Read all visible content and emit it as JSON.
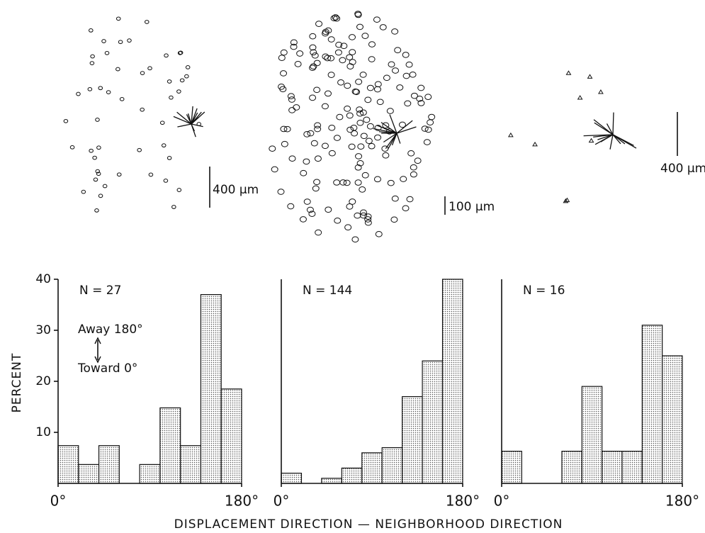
{
  "figure": {
    "xlabel": "DISPLACEMENT DIRECTION — NEIGHBORHOOD DIRECTION",
    "scale_bars": [
      "400 μm",
      "100 μm",
      "400 μm"
    ]
  },
  "chart_data": [
    {
      "type": "histogram",
      "ylabel": "PERCENT",
      "annotations": [
        "N = 27",
        "Away 180°",
        "Toward 0°"
      ],
      "bins": [
        0,
        20,
        40,
        60,
        80,
        100,
        120,
        140,
        160,
        180
      ],
      "values": [
        7.4,
        3.7,
        7.4,
        0,
        3.7,
        14.8,
        7.4,
        37,
        18.5
      ],
      "color": "#555555",
      "xlim": [
        0,
        180
      ],
      "ylim": [
        0,
        40
      ],
      "xticks": [
        {
          "value": 0,
          "label": "0°"
        },
        {
          "value": 180,
          "label": "180°"
        }
      ],
      "yticks": [
        10,
        20,
        30,
        40
      ]
    },
    {
      "type": "histogram",
      "annotations": [
        "N = 144"
      ],
      "bins": [
        0,
        20,
        40,
        60,
        80,
        100,
        120,
        140,
        160,
        180
      ],
      "values": [
        2,
        0,
        1,
        3,
        6,
        7,
        17,
        24,
        40
      ],
      "color": "#555555",
      "xlim": [
        0,
        180
      ],
      "ylim": [
        0,
        40
      ],
      "xticks": [
        {
          "value": 0,
          "label": "0°"
        },
        {
          "value": 180,
          "label": "180°"
        }
      ]
    },
    {
      "type": "histogram",
      "annotations": [
        "N = 16"
      ],
      "bins": [
        0,
        20,
        40,
        60,
        80,
        100,
        120,
        140,
        160,
        180
      ],
      "values": [
        6.3,
        0,
        0,
        6.3,
        19,
        6.3,
        6.3,
        31,
        25
      ],
      "color": "#555555",
      "xlim": [
        0,
        180
      ],
      "ylim": [
        0,
        40
      ],
      "xticks": [
        {
          "value": 0,
          "label": "0°"
        },
        {
          "value": 180,
          "label": "180°"
        }
      ]
    }
  ]
}
